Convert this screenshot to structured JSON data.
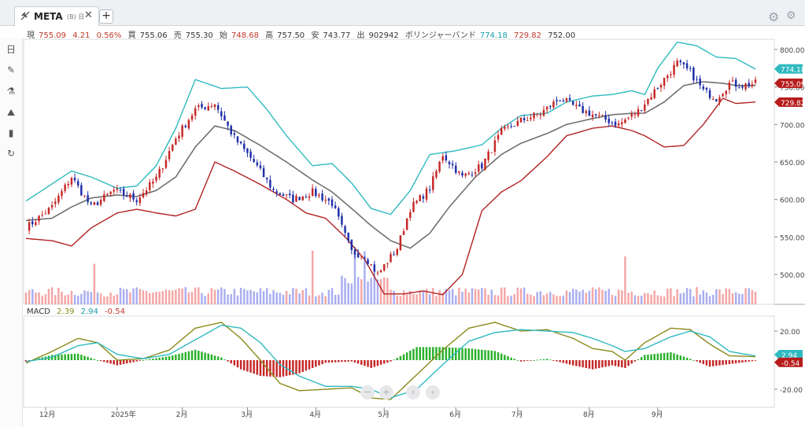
{
  "tab": {
    "symbol": "META",
    "sub": "(B) 日",
    "close": "✕",
    "add": "+"
  },
  "info": {
    "genzai_label": "現",
    "genzai": "755.09",
    "change": "4.21",
    "change_pct": "0.56%",
    "kai_label": "買",
    "kai": "755.06",
    "uri_label": "売",
    "uri": "755.30",
    "hajime_label": "始",
    "hajime": "748.68",
    "taka_label": "高",
    "taka": "757.50",
    "yasu_label": "安",
    "yasu": "743.77",
    "deki_label": "出",
    "deki": "902942",
    "bb_label": "ボリンジャーバンド",
    "bb_upper": "774.18",
    "bb_lower": "729.82",
    "bb_mid": "752.00"
  },
  "macd_info": {
    "label": "MACD",
    "macd": "2.39",
    "signal": "2.94",
    "hist": "-0.54"
  },
  "toolbar": {
    "items": [
      "日",
      "✎",
      "⚗",
      "⛰",
      "▮",
      "↻"
    ]
  },
  "colors": {
    "up": "#c62828",
    "down": "#1f2ea8",
    "bb_band": "#2fbac0",
    "bb_lower": "#b22222",
    "bb_mid": "#707070",
    "macd": "#8a8a1c",
    "signal": "#2fbac0",
    "hist_pos": "#2bb02b",
    "hist_neg": "#c62828",
    "vol_up": "#f4a6a6",
    "vol_down": "#a9aef0"
  },
  "chart_data": {
    "type": "candlestick",
    "ylim": [
      460,
      815
    ],
    "yticks": [
      "800.00",
      "750.00",
      "700.00",
      "650.00",
      "600.00",
      "550.00",
      "500.00"
    ],
    "xticks": [
      "12月",
      "2025年",
      "2月",
      "3月",
      "4月",
      "5月",
      "6月",
      "7月",
      "8月",
      "9月"
    ],
    "price_tags": {
      "upper": "774.18",
      "last": "755.09",
      "lower": "729.82"
    },
    "close_anchors": [
      [
        0,
        562
      ],
      [
        8,
        590
      ],
      [
        14,
        630
      ],
      [
        20,
        590
      ],
      [
        27,
        612
      ],
      [
        34,
        600
      ],
      [
        40,
        628
      ],
      [
        46,
        682
      ],
      [
        52,
        720
      ],
      [
        58,
        728
      ],
      [
        64,
        682
      ],
      [
        70,
        650
      ],
      [
        76,
        612
      ],
      [
        82,
        600
      ],
      [
        88,
        610
      ],
      [
        94,
        595
      ],
      [
        100,
        530
      ],
      [
        104,
        525
      ],
      [
        108,
        500
      ],
      [
        114,
        535
      ],
      [
        118,
        588
      ],
      [
        124,
        615
      ],
      [
        128,
        660
      ],
      [
        134,
        630
      ],
      [
        140,
        645
      ],
      [
        146,
        690
      ],
      [
        152,
        705
      ],
      [
        158,
        715
      ],
      [
        164,
        735
      ],
      [
        170,
        720
      ],
      [
        176,
        710
      ],
      [
        182,
        700
      ],
      [
        188,
        718
      ],
      [
        194,
        750
      ],
      [
        200,
        782
      ],
      [
        204,
        770
      ],
      [
        208,
        745
      ],
      [
        212,
        735
      ],
      [
        216,
        755
      ],
      [
        220,
        752
      ],
      [
        224,
        755
      ]
    ],
    "bb_upper_anchors": [
      [
        0,
        598
      ],
      [
        6,
        615
      ],
      [
        14,
        638
      ],
      [
        20,
        630
      ],
      [
        28,
        615
      ],
      [
        34,
        618
      ],
      [
        40,
        645
      ],
      [
        46,
        695
      ],
      [
        52,
        760
      ],
      [
        60,
        748
      ],
      [
        68,
        750
      ],
      [
        74,
        720
      ],
      [
        80,
        685
      ],
      [
        88,
        645
      ],
      [
        94,
        648
      ],
      [
        100,
        622
      ],
      [
        106,
        588
      ],
      [
        112,
        580
      ],
      [
        118,
        612
      ],
      [
        124,
        660
      ],
      [
        132,
        665
      ],
      [
        140,
        673
      ],
      [
        146,
        695
      ],
      [
        152,
        712
      ],
      [
        160,
        715
      ],
      [
        166,
        730
      ],
      [
        174,
        738
      ],
      [
        180,
        740
      ],
      [
        186,
        745
      ],
      [
        190,
        740
      ],
      [
        194,
        775
      ],
      [
        200,
        810
      ],
      [
        206,
        805
      ],
      [
        212,
        790
      ],
      [
        218,
        788
      ],
      [
        224,
        774
      ]
    ],
    "bb_mid_anchors": [
      [
        0,
        572
      ],
      [
        8,
        575
      ],
      [
        14,
        590
      ],
      [
        20,
        602
      ],
      [
        28,
        606
      ],
      [
        34,
        604
      ],
      [
        40,
        612
      ],
      [
        46,
        630
      ],
      [
        52,
        670
      ],
      [
        58,
        698
      ],
      [
        64,
        692
      ],
      [
        72,
        672
      ],
      [
        80,
        650
      ],
      [
        88,
        626
      ],
      [
        94,
        610
      ],
      [
        100,
        588
      ],
      [
        106,
        565
      ],
      [
        112,
        545
      ],
      [
        118,
        535
      ],
      [
        124,
        555
      ],
      [
        130,
        590
      ],
      [
        138,
        630
      ],
      [
        146,
        660
      ],
      [
        152,
        675
      ],
      [
        160,
        688
      ],
      [
        166,
        700
      ],
      [
        174,
        708
      ],
      [
        180,
        713
      ],
      [
        186,
        715
      ],
      [
        190,
        715
      ],
      [
        196,
        730
      ],
      [
        202,
        752
      ],
      [
        208,
        757
      ],
      [
        214,
        755
      ],
      [
        218,
        752
      ],
      [
        224,
        752
      ]
    ],
    "bb_lower_anchors": [
      [
        0,
        548
      ],
      [
        8,
        545
      ],
      [
        14,
        538
      ],
      [
        20,
        562
      ],
      [
        28,
        582
      ],
      [
        34,
        587
      ],
      [
        40,
        582
      ],
      [
        46,
        578
      ],
      [
        52,
        587
      ],
      [
        58,
        650
      ],
      [
        64,
        638
      ],
      [
        72,
        620
      ],
      [
        80,
        600
      ],
      [
        86,
        582
      ],
      [
        92,
        575
      ],
      [
        98,
        550
      ],
      [
        104,
        520
      ],
      [
        110,
        474
      ],
      [
        116,
        474
      ],
      [
        122,
        478
      ],
      [
        128,
        473
      ],
      [
        134,
        500
      ],
      [
        140,
        585
      ],
      [
        146,
        610
      ],
      [
        152,
        625
      ],
      [
        160,
        657
      ],
      [
        166,
        685
      ],
      [
        174,
        695
      ],
      [
        180,
        698
      ],
      [
        186,
        692
      ],
      [
        190,
        685
      ],
      [
        196,
        670
      ],
      [
        202,
        672
      ],
      [
        208,
        700
      ],
      [
        214,
        735
      ],
      [
        218,
        728
      ],
      [
        224,
        730
      ]
    ],
    "macd": {
      "ylim": [
        -26,
        27
      ],
      "yticks": [
        "20.00",
        "-20.00"
      ],
      "macd_anchors": [
        [
          0,
          -2
        ],
        [
          8,
          6
        ],
        [
          16,
          15
        ],
        [
          22,
          12
        ],
        [
          28,
          0
        ],
        [
          36,
          1
        ],
        [
          44,
          7
        ],
        [
          52,
          22
        ],
        [
          60,
          26
        ],
        [
          66,
          15
        ],
        [
          72,
          0
        ],
        [
          78,
          -16
        ],
        [
          84,
          -21
        ],
        [
          92,
          -20
        ],
        [
          100,
          -19
        ],
        [
          106,
          -26
        ],
        [
          112,
          -27
        ],
        [
          120,
          -10
        ],
        [
          128,
          7
        ],
        [
          136,
          22
        ],
        [
          144,
          26
        ],
        [
          152,
          20
        ],
        [
          160,
          21
        ],
        [
          168,
          15
        ],
        [
          174,
          8
        ],
        [
          180,
          6
        ],
        [
          184,
          0
        ],
        [
          190,
          12
        ],
        [
          198,
          22
        ],
        [
          204,
          21
        ],
        [
          210,
          11
        ],
        [
          216,
          3
        ],
        [
          224,
          2.4
        ]
      ],
      "signal_anchors": [
        [
          0,
          -1
        ],
        [
          8,
          2
        ],
        [
          16,
          10
        ],
        [
          22,
          12
        ],
        [
          28,
          4
        ],
        [
          36,
          1
        ],
        [
          44,
          4
        ],
        [
          52,
          14
        ],
        [
          60,
          24
        ],
        [
          66,
          22
        ],
        [
          72,
          12
        ],
        [
          78,
          -3
        ],
        [
          84,
          -11
        ],
        [
          92,
          -18
        ],
        [
          100,
          -18
        ],
        [
          106,
          -20
        ],
        [
          112,
          -26
        ],
        [
          120,
          -20
        ],
        [
          128,
          -3
        ],
        [
          136,
          13
        ],
        [
          144,
          19
        ],
        [
          152,
          21
        ],
        [
          160,
          20
        ],
        [
          168,
          19
        ],
        [
          174,
          15
        ],
        [
          180,
          10
        ],
        [
          184,
          6
        ],
        [
          190,
          8
        ],
        [
          198,
          16
        ],
        [
          204,
          20
        ],
        [
          210,
          16
        ],
        [
          216,
          6
        ],
        [
          224,
          2.9
        ]
      ]
    }
  }
}
